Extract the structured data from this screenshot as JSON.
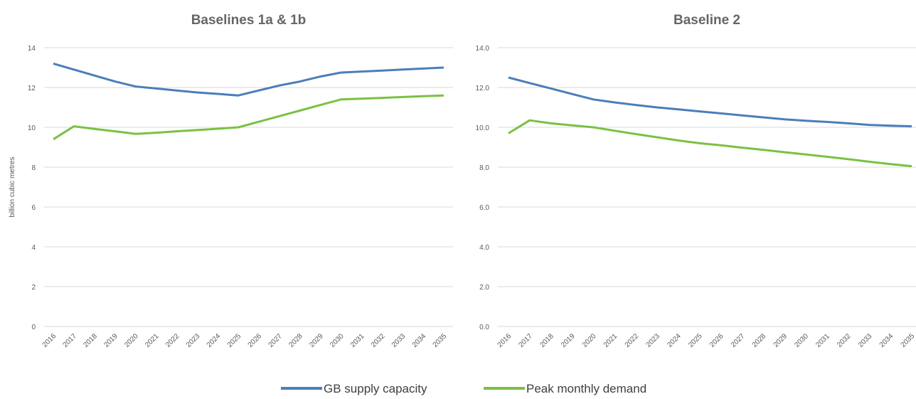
{
  "chart_data": [
    {
      "type": "line",
      "title": "Baselines 1a & 1b",
      "y_label": "billion cubic metres",
      "categories": [
        "2016",
        "2017",
        "2018",
        "2019",
        "2020",
        "2021",
        "2022",
        "2023",
        "2024",
        "2025",
        "2026",
        "2027",
        "2028",
        "2029",
        "2030",
        "2031",
        "2032",
        "2033",
        "2034",
        "2035"
      ],
      "series": [
        {
          "name": "GB supply capacity",
          "color": "#4a7ebb",
          "values": [
            13.2,
            12.9,
            12.6,
            12.3,
            12.05,
            11.95,
            11.85,
            11.75,
            11.68,
            11.6,
            11.85,
            12.1,
            12.3,
            12.55,
            12.75,
            12.8,
            12.85,
            12.9,
            12.95,
            13.0
          ]
        },
        {
          "name": "Peak monthly demand",
          "color": "#7ac143",
          "values": [
            9.4,
            10.05,
            9.92,
            9.8,
            9.67,
            9.73,
            9.8,
            9.86,
            9.93,
            10.0,
            10.28,
            10.56,
            10.84,
            11.12,
            11.4,
            11.44,
            11.48,
            11.52,
            11.56,
            11.6
          ]
        }
      ],
      "ylim": [
        0,
        14
      ],
      "yticks": [
        0,
        2,
        4,
        6,
        8,
        10,
        12,
        14
      ],
      "grid": true
    },
    {
      "type": "line",
      "title": "Baseline 2",
      "categories": [
        "2016",
        "2017",
        "2018",
        "2019",
        "2020",
        "2021",
        "2022",
        "2023",
        "2024",
        "2025",
        "2026",
        "2027",
        "2028",
        "2029",
        "2030",
        "2031",
        "2032",
        "2033",
        "2034",
        "2035"
      ],
      "series": [
        {
          "name": "GB supply capacity",
          "color": "#4a7ebb",
          "values": [
            12.5,
            12.22,
            11.95,
            11.67,
            11.4,
            11.25,
            11.12,
            11.0,
            10.9,
            10.8,
            10.7,
            10.6,
            10.5,
            10.4,
            10.33,
            10.27,
            10.2,
            10.12,
            10.08,
            10.05
          ]
        },
        {
          "name": "Peak monthly demand",
          "color": "#7ac143",
          "values": [
            9.7,
            10.35,
            10.2,
            10.1,
            10.0,
            9.83,
            9.66,
            9.5,
            9.34,
            9.2,
            9.1,
            8.98,
            8.87,
            8.75,
            8.64,
            8.52,
            8.4,
            8.27,
            8.15,
            8.05
          ]
        }
      ],
      "ylim": [
        0,
        14
      ],
      "yticks": [
        {
          "value": 0,
          "label": "0.0"
        },
        {
          "value": 2,
          "label": "2.0"
        },
        {
          "value": 4,
          "label": "4.0"
        },
        {
          "value": 6,
          "label": "6.0"
        },
        {
          "value": 8,
          "label": "8.0"
        },
        {
          "value": 10,
          "label": "10.0"
        },
        {
          "value": 12,
          "label": "12.0"
        },
        {
          "value": 14,
          "label": "14.0"
        }
      ],
      "grid": true
    }
  ]
}
